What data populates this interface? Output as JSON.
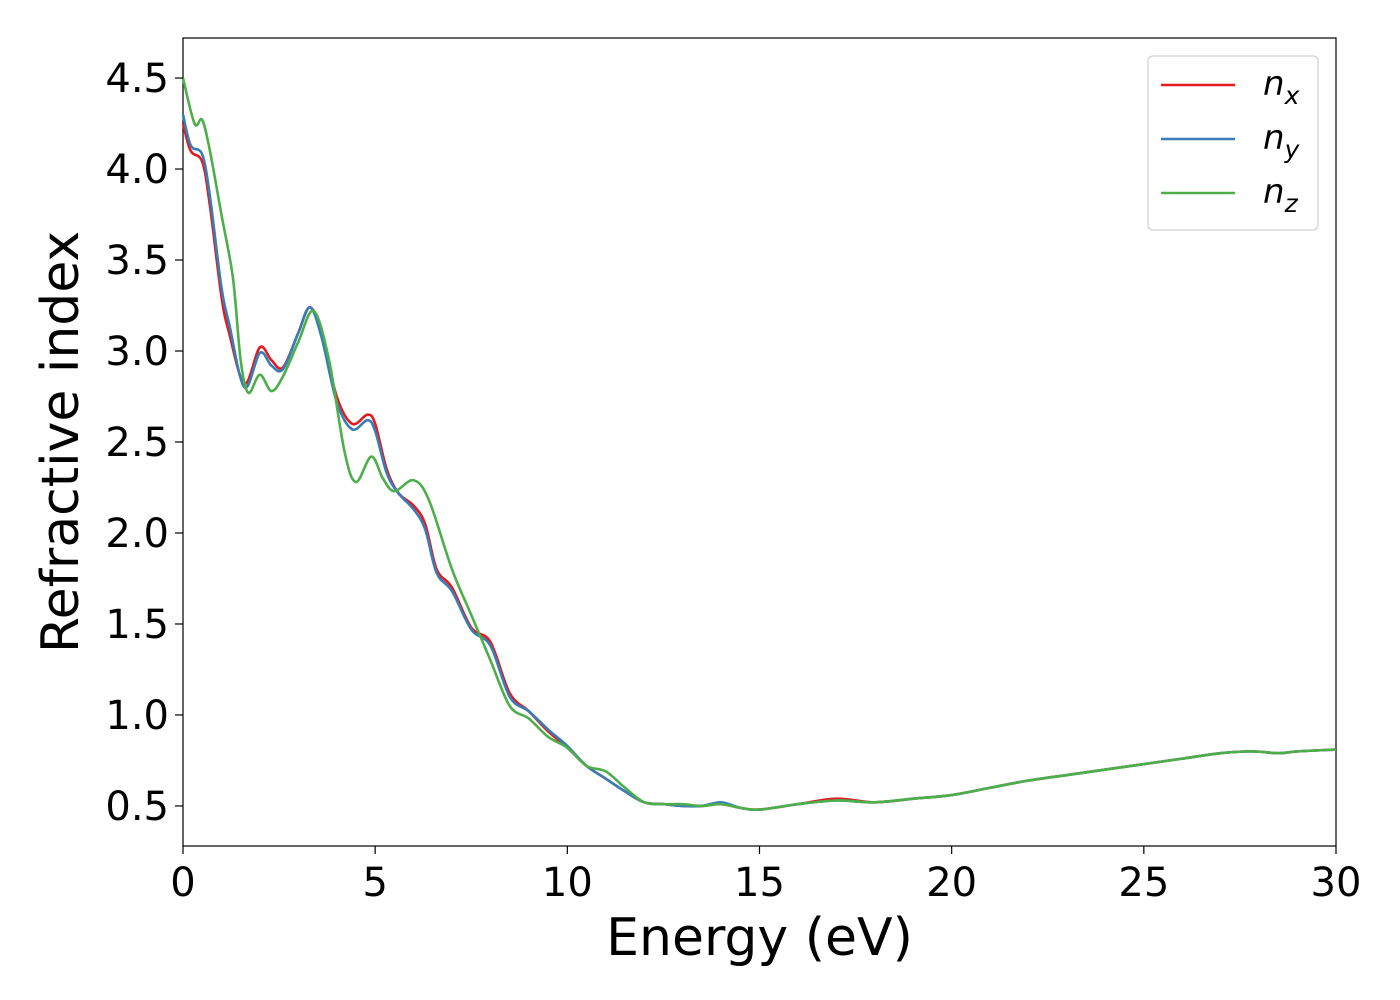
{
  "chart_data": {
    "type": "line",
    "xlabel": "Energy (eV)",
    "ylabel": "Refractive index",
    "xlim": [
      0,
      30
    ],
    "ylim": [
      0.28,
      4.72
    ],
    "xticks": [
      "0",
      "5",
      "10",
      "15",
      "20",
      "25",
      "30"
    ],
    "yticks": [
      "0.5",
      "1.0",
      "1.5",
      "2.0",
      "2.5",
      "3.0",
      "3.5",
      "4.0",
      "4.5"
    ],
    "grid": false,
    "legend_position": "top-right",
    "series": [
      {
        "name": "n",
        "subscript": "x",
        "color": "#e41a1c",
        "x": [
          0,
          0.2,
          0.5,
          0.7,
          1.0,
          1.2,
          1.6,
          2.0,
          2.3,
          2.6,
          3.0,
          3.3,
          3.6,
          4.0,
          4.4,
          4.8,
          5.0,
          5.3,
          5.6,
          6.0,
          6.3,
          6.6,
          7.0,
          7.5,
          8.0,
          8.5,
          9.0,
          9.5,
          10.0,
          10.5,
          11.0,
          11.5,
          12.0,
          12.5,
          13.0,
          13.5,
          14.0,
          14.5,
          15.0,
          16.0,
          17.0,
          18.0,
          19.0,
          20.0,
          21.0,
          22.0,
          23.0,
          24.0,
          25.0,
          26.0,
          27.0,
          27.8,
          28.5,
          29.0,
          30.0
        ],
        "values": [
          4.25,
          4.1,
          4.04,
          3.8,
          3.3,
          3.1,
          2.82,
          3.02,
          2.95,
          2.91,
          3.1,
          3.24,
          3.1,
          2.75,
          2.6,
          2.65,
          2.6,
          2.35,
          2.22,
          2.15,
          2.05,
          1.8,
          1.7,
          1.48,
          1.4,
          1.12,
          1.02,
          0.91,
          0.82,
          0.72,
          0.65,
          0.58,
          0.52,
          0.51,
          0.5,
          0.5,
          0.51,
          0.49,
          0.48,
          0.51,
          0.54,
          0.52,
          0.54,
          0.56,
          0.6,
          0.64,
          0.67,
          0.7,
          0.73,
          0.76,
          0.79,
          0.8,
          0.79,
          0.8,
          0.81
        ]
      },
      {
        "name": "n",
        "subscript": "y",
        "color": "#377eb8",
        "x": [
          0,
          0.2,
          0.5,
          0.7,
          1.0,
          1.2,
          1.6,
          2.0,
          2.3,
          2.6,
          3.0,
          3.3,
          3.6,
          4.0,
          4.4,
          4.8,
          5.0,
          5.3,
          5.6,
          6.0,
          6.3,
          6.6,
          7.0,
          7.5,
          8.0,
          8.5,
          9.0,
          9.5,
          10.0,
          10.5,
          11.0,
          11.5,
          12.0,
          12.5,
          13.0,
          13.5,
          14.0,
          14.5,
          15.0,
          16.0,
          17.0,
          18.0,
          19.0,
          20.0,
          21.0,
          22.0,
          23.0,
          24.0,
          25.0,
          26.0,
          27.0,
          27.8,
          28.5,
          29.0,
          30.0
        ],
        "values": [
          4.3,
          4.13,
          4.08,
          3.85,
          3.35,
          3.15,
          2.8,
          2.99,
          2.92,
          2.9,
          3.1,
          3.24,
          3.08,
          2.72,
          2.57,
          2.62,
          2.56,
          2.33,
          2.22,
          2.13,
          2.02,
          1.78,
          1.68,
          1.47,
          1.38,
          1.1,
          1.02,
          0.92,
          0.83,
          0.72,
          0.65,
          0.58,
          0.52,
          0.51,
          0.5,
          0.5,
          0.52,
          0.49,
          0.48,
          0.51,
          0.53,
          0.52,
          0.54,
          0.56,
          0.6,
          0.64,
          0.67,
          0.7,
          0.73,
          0.76,
          0.79,
          0.8,
          0.79,
          0.8,
          0.81
        ]
      },
      {
        "name": "n",
        "subscript": "z",
        "color": "#4daf4a",
        "x": [
          0,
          0.3,
          0.5,
          0.7,
          1.0,
          1.3,
          1.5,
          1.7,
          2.0,
          2.3,
          2.6,
          3.0,
          3.4,
          3.8,
          4.2,
          4.5,
          4.9,
          5.2,
          5.5,
          6.0,
          6.4,
          7.0,
          7.5,
          8.0,
          8.5,
          9.0,
          9.5,
          10.0,
          10.5,
          11.0,
          11.5,
          12.0,
          12.5,
          13.0,
          13.5,
          14.0,
          14.5,
          15.0,
          16.0,
          17.0,
          18.0,
          19.0,
          20.0,
          21.0,
          22.0,
          23.0,
          24.0,
          25.0,
          26.0,
          27.0,
          27.8,
          28.5,
          29.0,
          30.0
        ],
        "values": [
          4.5,
          4.25,
          4.27,
          4.1,
          3.75,
          3.4,
          2.95,
          2.77,
          2.87,
          2.78,
          2.86,
          3.05,
          3.22,
          2.95,
          2.45,
          2.28,
          2.42,
          2.3,
          2.23,
          2.29,
          2.18,
          1.8,
          1.55,
          1.3,
          1.05,
          0.98,
          0.88,
          0.82,
          0.72,
          0.69,
          0.6,
          0.52,
          0.51,
          0.51,
          0.5,
          0.51,
          0.49,
          0.48,
          0.51,
          0.53,
          0.52,
          0.54,
          0.56,
          0.6,
          0.64,
          0.67,
          0.7,
          0.73,
          0.76,
          0.79,
          0.8,
          0.79,
          0.8,
          0.81
        ]
      }
    ]
  }
}
